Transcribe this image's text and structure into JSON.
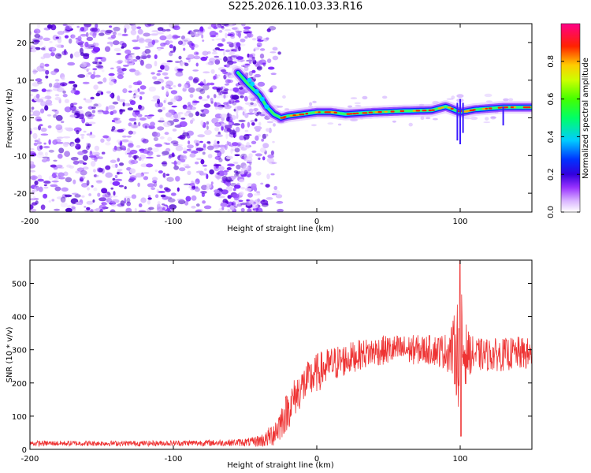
{
  "title": "S225.2026.110.03.33.R16",
  "colors": {
    "trace": "#ee3333",
    "axis": "#000000",
    "background": "#ffffff",
    "colormap": [
      "#ffffff",
      "#e6ccff",
      "#b066ff",
      "#6600ee",
      "#0000ff",
      "#00ccff",
      "#00ff66",
      "#66ff00",
      "#ffff00",
      "#ffaa00",
      "#ff0000",
      "#ff0088"
    ]
  },
  "chart_data": [
    {
      "type": "heatmap",
      "name": "spectrogram",
      "xlabel": "Height of straight line (km)",
      "ylabel": "Frequency (Hz)",
      "xlim": [
        -200,
        150
      ],
      "ylim": [
        -25,
        25
      ],
      "xticks": [
        -200,
        -100,
        0,
        100
      ],
      "yticks": [
        -20,
        -10,
        0,
        10,
        20
      ],
      "noise_region_x": [
        -200,
        -30
      ],
      "signal_ridge": {
        "x": [
          -55,
          -48,
          -40,
          -35,
          -30,
          -25,
          -20,
          -10,
          0,
          10,
          20,
          40,
          60,
          80,
          90,
          100,
          110,
          120,
          130,
          150
        ],
        "freq_hz": [
          12,
          9,
          6,
          3,
          1,
          0,
          0.5,
          1,
          1.5,
          1.5,
          1,
          1.5,
          1.8,
          2,
          3,
          1.5,
          2.2,
          2.5,
          2.8,
          2.8
        ]
      },
      "colorbar": {
        "label": "Normalized spectral amplitude",
        "range": [
          0.0,
          1.0
        ],
        "ticks": [
          "0.0",
          "0.2",
          "0.4",
          "0.6",
          "0.8"
        ]
      }
    },
    {
      "type": "line",
      "name": "snr",
      "xlabel": "Height of straight line (km)",
      "ylabel": "SNR (10 * v/v)",
      "xlim": [
        -200,
        150
      ],
      "ylim": [
        0,
        570
      ],
      "xticks": [
        -200,
        -100,
        0,
        100
      ],
      "yticks": [
        0,
        100,
        200,
        300,
        400,
        500
      ],
      "envelope": {
        "x": [
          -200,
          -120,
          -60,
          -45,
          -35,
          -28,
          -20,
          -15,
          -10,
          0,
          10,
          20,
          30,
          40,
          50,
          60,
          70,
          80,
          90,
          95,
          100,
          105,
          110,
          120,
          130,
          140,
          150
        ],
        "mean": [
          18,
          18,
          20,
          22,
          30,
          60,
          120,
          160,
          190,
          230,
          255,
          270,
          285,
          295,
          300,
          300,
          300,
          300,
          295,
          300,
          300,
          290,
          285,
          285,
          285,
          290,
          285
        ],
        "spread": [
          8,
          8,
          10,
          14,
          25,
          50,
          60,
          60,
          60,
          60,
          55,
          50,
          45,
          45,
          45,
          45,
          45,
          45,
          55,
          90,
          200,
          70,
          50,
          50,
          50,
          50,
          50
        ]
      },
      "peak": {
        "x": 100,
        "max": 570,
        "min": 40
      }
    }
  ]
}
